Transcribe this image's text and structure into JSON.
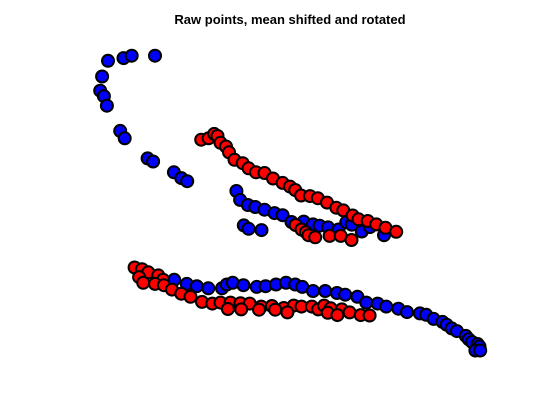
{
  "chart_data": {
    "type": "scatter",
    "title": "Raw points, mean shifted and rotated",
    "xlabel": "",
    "ylabel": "",
    "axes_visible": false,
    "grid": false,
    "xlim": [
      0,
      100
    ],
    "ylim": [
      0,
      100
    ],
    "series": [
      {
        "name": "blue points",
        "color": "#0000ff",
        "points": [
          [
            0.0,
            92.7
          ],
          [
            4.2,
            93.5
          ],
          [
            6.4,
            94.2
          ],
          [
            12.7,
            94.2
          ],
          [
            -1.6,
            88.1
          ],
          [
            -2.1,
            83.9
          ],
          [
            -1.1,
            82.3
          ],
          [
            -0.3,
            79.5
          ],
          [
            3.3,
            72.1
          ],
          [
            4.5,
            69.9
          ],
          [
            10.7,
            64.0
          ],
          [
            12.2,
            63.1
          ],
          [
            17.8,
            59.9
          ],
          [
            19.8,
            58.2
          ],
          [
            21.4,
            57.3
          ],
          [
            34.7,
            54.4
          ],
          [
            35.7,
            51.8
          ],
          [
            37.8,
            50.3
          ],
          [
            39.8,
            49.7
          ],
          [
            42.3,
            48.9
          ],
          [
            45.0,
            47.9
          ],
          [
            47.2,
            47.3
          ],
          [
            49.6,
            45.3
          ],
          [
            52.9,
            45.4
          ],
          [
            55.4,
            44.6
          ],
          [
            57.2,
            44.2
          ],
          [
            59.5,
            43.7
          ],
          [
            62.3,
            43.1
          ],
          [
            64.4,
            45.2
          ],
          [
            65.9,
            44.5
          ],
          [
            68.6,
            42.5
          ],
          [
            70.8,
            43.8
          ],
          [
            74.6,
            41.4
          ],
          [
            36.7,
            44.3
          ],
          [
            38.0,
            43.3
          ],
          [
            41.5,
            42.9
          ],
          [
            17.9,
            28.3
          ],
          [
            21.3,
            27.1
          ],
          [
            24.0,
            26.4
          ],
          [
            27.1,
            25.8
          ],
          [
            30.8,
            25.8
          ],
          [
            32.1,
            26.9
          ],
          [
            33.7,
            27.4
          ],
          [
            36.6,
            26.7
          ],
          [
            40.2,
            26.2
          ],
          [
            42.6,
            26.4
          ],
          [
            45.4,
            26.9
          ],
          [
            48.1,
            27.4
          ],
          [
            50.6,
            26.9
          ],
          [
            52.5,
            26.2
          ],
          [
            55.4,
            25.0
          ],
          [
            58.7,
            25.0
          ],
          [
            61.9,
            24.4
          ],
          [
            64.1,
            23.9
          ],
          [
            67.4,
            23.3
          ],
          [
            69.8,
            21.6
          ],
          [
            72.9,
            21.3
          ],
          [
            75.2,
            20.4
          ],
          [
            78.5,
            19.8
          ],
          [
            80.8,
            18.8
          ],
          [
            84.3,
            18.4
          ],
          [
            86.0,
            18.0
          ],
          [
            88.0,
            16.8
          ],
          [
            90.4,
            15.9
          ],
          [
            91.5,
            15.1
          ],
          [
            92.9,
            14.0
          ],
          [
            94.3,
            13.2
          ],
          [
            96.7,
            11.8
          ],
          [
            97.5,
            10.8
          ],
          [
            98.4,
            10.0
          ],
          [
            99.9,
            9.4
          ],
          [
            100.4,
            8.7
          ],
          [
            99.3,
            7.5
          ],
          [
            100.6,
            7.5
          ]
        ]
      },
      {
        "name": "red points",
        "color": "#ff0000",
        "points": [
          [
            25.2,
            69.5
          ],
          [
            27.2,
            69.9
          ],
          [
            28.7,
            71.2
          ],
          [
            29.6,
            70.6
          ],
          [
            30.4,
            68.6
          ],
          [
            31.9,
            67.5
          ],
          [
            32.7,
            65.8
          ],
          [
            34.2,
            63.6
          ],
          [
            36.4,
            62.6
          ],
          [
            38.0,
            61.1
          ],
          [
            40.0,
            59.9
          ],
          [
            42.3,
            59.7
          ],
          [
            44.6,
            58.1
          ],
          [
            47.2,
            56.8
          ],
          [
            49.2,
            55.7
          ],
          [
            50.6,
            54.7
          ],
          [
            52.2,
            53.1
          ],
          [
            54.6,
            52.9
          ],
          [
            56.7,
            52.3
          ],
          [
            59.2,
            51.0
          ],
          [
            61.7,
            49.5
          ],
          [
            63.6,
            48.7
          ],
          [
            66.1,
            47.2
          ],
          [
            67.7,
            46.1
          ],
          [
            70.2,
            45.6
          ],
          [
            72.5,
            44.6
          ],
          [
            75.0,
            43.6
          ],
          [
            77.9,
            42.4
          ],
          [
            50.7,
            44.4
          ],
          [
            52.3,
            43.1
          ],
          [
            53.5,
            42.3
          ],
          [
            54.2,
            41.4
          ],
          [
            56.0,
            40.8
          ],
          [
            59.9,
            41.2
          ],
          [
            62.9,
            41.2
          ],
          [
            65.8,
            40.0
          ],
          [
            7.2,
            31.9
          ],
          [
            9.2,
            31.4
          ],
          [
            10.9,
            30.5
          ],
          [
            13.6,
            29.6
          ],
          [
            14.9,
            28.3
          ],
          [
            8.4,
            29.1
          ],
          [
            9.5,
            27.4
          ],
          [
            12.7,
            27.1
          ],
          [
            15.1,
            26.7
          ],
          [
            17.3,
            25.4
          ],
          [
            19.8,
            24.2
          ],
          [
            22.3,
            23.3
          ],
          [
            25.4,
            21.8
          ],
          [
            28.2,
            21.3
          ],
          [
            30.4,
            21.6
          ],
          [
            33.1,
            21.6
          ],
          [
            35.8,
            21.4
          ],
          [
            38.3,
            21.3
          ],
          [
            41.4,
            20.4
          ],
          [
            44.3,
            20.6
          ],
          [
            47.5,
            20.0
          ],
          [
            50.2,
            20.7
          ],
          [
            52.3,
            20.4
          ],
          [
            55.1,
            20.4
          ],
          [
            56.8,
            19.6
          ],
          [
            58.4,
            20.7
          ],
          [
            60.2,
            19.9
          ],
          [
            63.2,
            19.6
          ],
          [
            65.3,
            18.7
          ],
          [
            68.3,
            17.9
          ],
          [
            70.7,
            17.8
          ],
          [
            32.4,
            19.7
          ],
          [
            36.0,
            19.6
          ],
          [
            40.8,
            19.5
          ],
          [
            45.2,
            19.5
          ],
          [
            48.5,
            18.7
          ],
          [
            59.4,
            18.6
          ],
          [
            62.0,
            17.9
          ]
        ]
      }
    ]
  }
}
